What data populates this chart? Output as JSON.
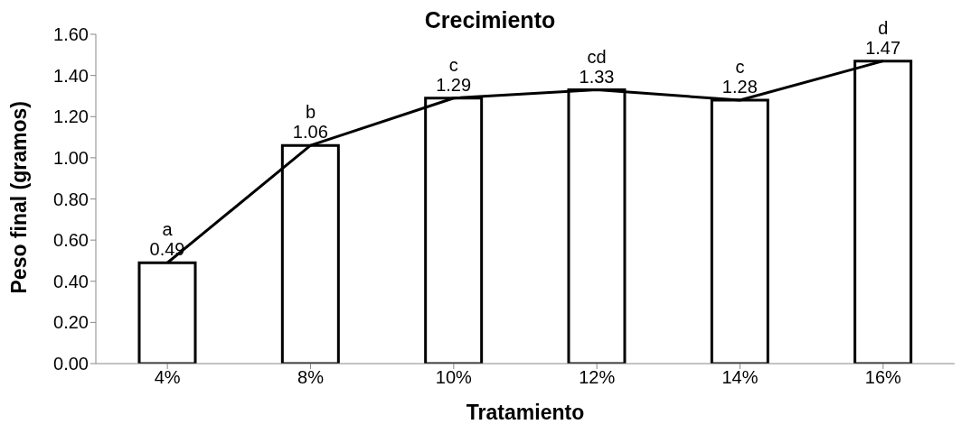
{
  "chart_data": {
    "type": "bar",
    "title": "Crecimiento",
    "xlabel": "Tratamiento",
    "ylabel": "Peso final (gramos)",
    "categories": [
      "4%",
      "8%",
      "10%",
      "12%",
      "14%",
      "16%"
    ],
    "series": [
      {
        "color": "#ffffff",
        "values": [
          0.49,
          1.06,
          1.29,
          1.33,
          1.28,
          1.47
        ],
        "value_labels": [
          "0.49",
          "1.06",
          "1.29",
          "1.33",
          "1.28",
          "1.47"
        ]
      },
      {
        "type": "line",
        "color": "#000000",
        "values": [
          0.49,
          1.06,
          1.29,
          1.33,
          1.28,
          1.47
        ]
      }
    ],
    "marker": "none",
    "grid": false,
    "legend": false,
    "ylim": [
      0,
      1.6
    ],
    "yticks": [
      {
        "value": 0,
        "label": "0.00"
      },
      {
        "value": 0.2,
        "label": "0.20"
      },
      {
        "value": 0.4,
        "label": "0.40"
      },
      {
        "value": 0.6,
        "label": "0.60"
      },
      {
        "value": 0.8,
        "label": "0.80"
      },
      {
        "value": 1,
        "label": "1.00"
      },
      {
        "value": 1.2,
        "label": "1.20"
      },
      {
        "value": 1.4,
        "label": "1.40"
      },
      {
        "value": 1.6,
        "label": "1.60"
      }
    ],
    "annotations": [
      {
        "text": "a",
        "x": "4%",
        "y": 0.49
      },
      {
        "text": "b",
        "x": "8%",
        "y": 1.06
      },
      {
        "text": "c",
        "x": "10%",
        "y": 1.29
      },
      {
        "text": "cd",
        "x": "12%",
        "y": 1.33
      },
      {
        "text": "c",
        "x": "14%",
        "y": 1.28
      },
      {
        "text": "d",
        "x": "16%",
        "y": 1.47
      }
    ]
  }
}
